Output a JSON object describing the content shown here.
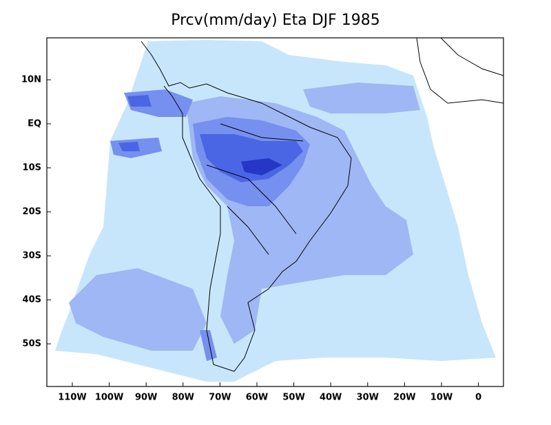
{
  "title": "Prcv(mm/day) Eta DJF 1985",
  "lat_labels": [
    "10N",
    "EQ",
    "10S",
    "20S",
    "30S",
    "40S",
    "50S"
  ],
  "lon_labels": [
    "110W",
    "100W",
    "90W",
    "80W",
    "70W",
    "60W",
    "50W",
    "40W",
    "30W",
    "20W",
    "10W",
    "0"
  ]
}
